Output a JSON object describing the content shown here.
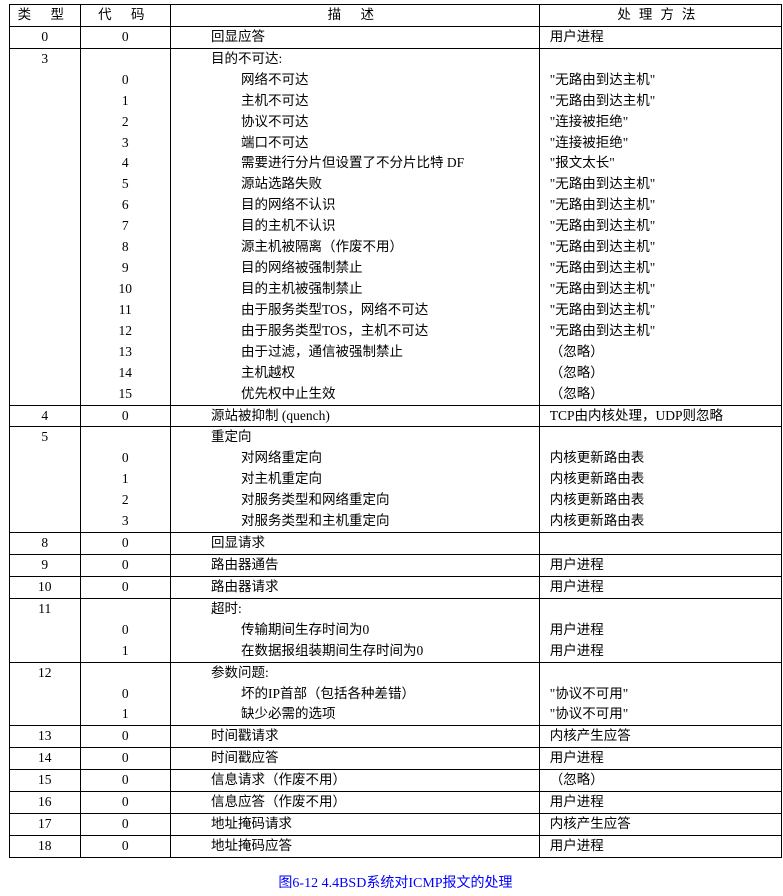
{
  "headers": {
    "h1": "类 型",
    "h2": "代 码",
    "h3": "描   述",
    "h4": "处理方法"
  },
  "caption": "图6-12  4.4BSD系统对ICMP报文的处理",
  "rows": [
    {
      "t": "0",
      "c": "0",
      "d": "回显应答",
      "m": "用户进程",
      "di": 1
    },
    {
      "t": "3",
      "c": "",
      "d": "目的不可达:",
      "m": "",
      "di": 1,
      "head": true
    },
    {
      "t": "",
      "c": "0",
      "d": "网络不可达",
      "m": "\"无路由到达主机\"",
      "di": 2
    },
    {
      "t": "",
      "c": "1",
      "d": "主机不可达",
      "m": "\"无路由到达主机\"",
      "di": 2
    },
    {
      "t": "",
      "c": "2",
      "d": "协议不可达",
      "m": "\"连接被拒绝\"",
      "di": 2
    },
    {
      "t": "",
      "c": "3",
      "d": "端口不可达",
      "m": "\"连接被拒绝\"",
      "di": 2
    },
    {
      "t": "",
      "c": "4",
      "d": "需要进行分片但设置了不分片比特 DF",
      "m": "\"报文太长\"",
      "di": 2
    },
    {
      "t": "",
      "c": "5",
      "d": "源站选路失败",
      "m": "\"无路由到达主机\"",
      "di": 2
    },
    {
      "t": "",
      "c": "6",
      "d": "目的网络不认识",
      "m": "\"无路由到达主机\"",
      "di": 2
    },
    {
      "t": "",
      "c": "7",
      "d": "目的主机不认识",
      "m": "\"无路由到达主机\"",
      "di": 2
    },
    {
      "t": "",
      "c": "8",
      "d": "源主机被隔离（作废不用）",
      "m": "\"无路由到达主机\"",
      "di": 2
    },
    {
      "t": "",
      "c": "9",
      "d": "目的网络被强制禁止",
      "m": "\"无路由到达主机\"",
      "di": 2
    },
    {
      "t": "",
      "c": "10",
      "d": "目的主机被强制禁止",
      "m": "\"无路由到达主机\"",
      "di": 2
    },
    {
      "t": "",
      "c": "11",
      "d": "由于服务类型TOS，网络不可达",
      "m": "\"无路由到达主机\"",
      "di": 2
    },
    {
      "t": "",
      "c": "12",
      "d": "由于服务类型TOS，主机不可达",
      "m": "\"无路由到达主机\"",
      "di": 2
    },
    {
      "t": "",
      "c": "13",
      "d": "由于过滤，通信被强制禁止",
      "m": "（忽略）",
      "di": 2
    },
    {
      "t": "",
      "c": "14",
      "d": "主机越权",
      "m": "（忽略）",
      "di": 2
    },
    {
      "t": "",
      "c": "15",
      "d": "优先权中止生效",
      "m": "（忽略）",
      "di": 2
    },
    {
      "t": "4",
      "c": "0",
      "d": "源站被抑制 (quench)",
      "m": "TCP由内核处理，UDP则忽略",
      "di": 1
    },
    {
      "t": "5",
      "c": "",
      "d": "重定向",
      "m": "",
      "di": 1,
      "head": true
    },
    {
      "t": "",
      "c": "0",
      "d": "对网络重定向",
      "m": "内核更新路由表",
      "di": 2
    },
    {
      "t": "",
      "c": "1",
      "d": "对主机重定向",
      "m": "内核更新路由表",
      "di": 2
    },
    {
      "t": "",
      "c": "2",
      "d": "对服务类型和网络重定向",
      "m": "内核更新路由表",
      "di": 2
    },
    {
      "t": "",
      "c": "3",
      "d": "对服务类型和主机重定向",
      "m": "内核更新路由表",
      "di": 2
    },
    {
      "t": "8",
      "c": "0",
      "d": "回显请求",
      "m": "",
      "di": 1
    },
    {
      "t": "9",
      "c": "0",
      "d": "路由器通告",
      "m": "用户进程",
      "di": 1
    },
    {
      "t": "10",
      "c": "0",
      "d": "路由器请求",
      "m": "用户进程",
      "di": 1
    },
    {
      "t": "11",
      "c": "",
      "d": "超时:",
      "m": "",
      "di": 1,
      "head": true
    },
    {
      "t": "",
      "c": "0",
      "d": "传输期间生存时间为0",
      "m": "用户进程",
      "di": 2
    },
    {
      "t": "",
      "c": "1",
      "d": "在数据报组装期间生存时间为0",
      "m": "用户进程",
      "di": 2
    },
    {
      "t": "12",
      "c": "",
      "d": "参数问题:",
      "m": "",
      "di": 1,
      "head": true
    },
    {
      "t": "",
      "c": "0",
      "d": "坏的IP首部（包括各种差错）",
      "m": "\"协议不可用\"",
      "di": 2
    },
    {
      "t": "",
      "c": "1",
      "d": "缺少必需的选项",
      "m": "\"协议不可用\"",
      "di": 2
    },
    {
      "t": "13",
      "c": "0",
      "d": "时间戳请求",
      "m": "内核产生应答",
      "di": 1
    },
    {
      "t": "14",
      "c": "0",
      "d": "时间戳应答",
      "m": "用户进程",
      "di": 1
    },
    {
      "t": "15",
      "c": "0",
      "d": "信息请求（作废不用）",
      "m": "（忽略）",
      "di": 1
    },
    {
      "t": "16",
      "c": "0",
      "d": "信息应答（作废不用）",
      "m": "用户进程",
      "di": 1
    },
    {
      "t": "17",
      "c": "0",
      "d": "地址掩码请求",
      "m": "内核产生应答",
      "di": 1
    },
    {
      "t": "18",
      "c": "0",
      "d": "地址掩码应答",
      "m": "用户进程",
      "di": 1
    }
  ]
}
